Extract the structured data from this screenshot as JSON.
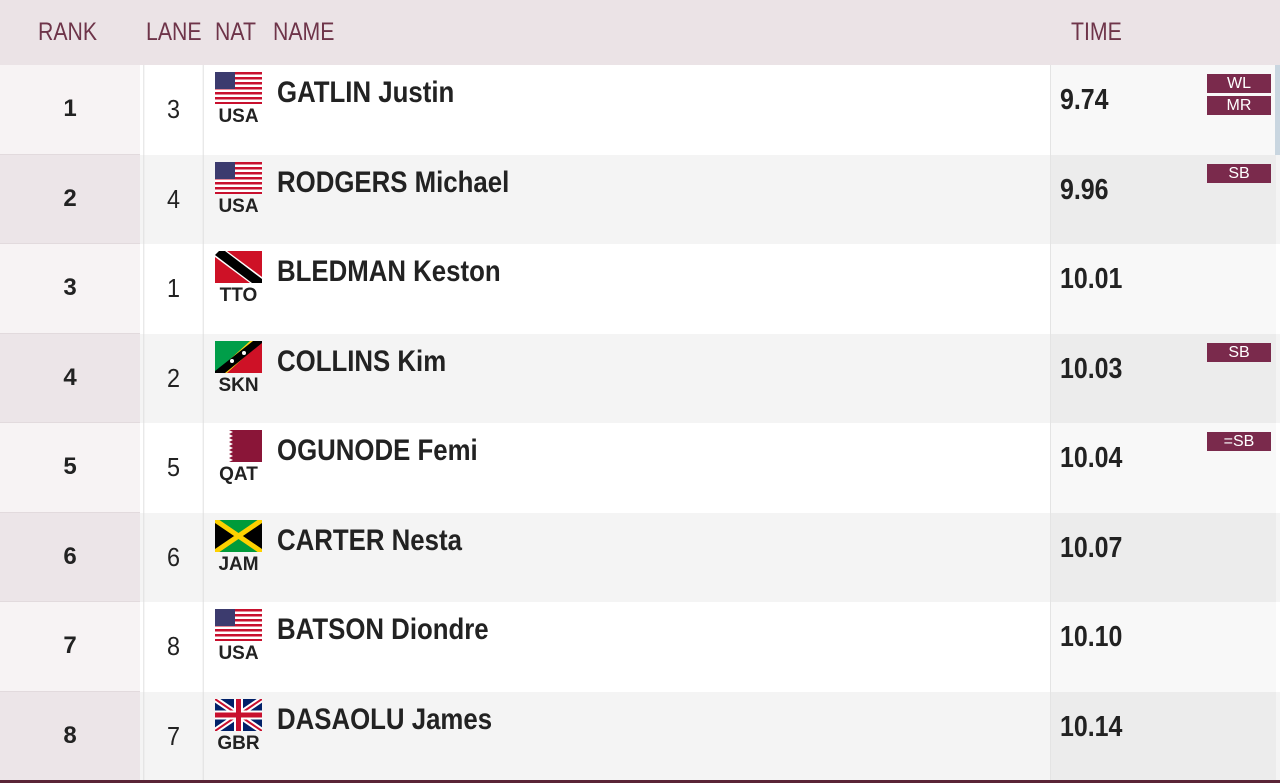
{
  "header": {
    "rank": "RANK",
    "lane": "LANE",
    "nat": "NAT",
    "name": "NAME",
    "time": "TIME"
  },
  "rows": [
    {
      "rank": "1",
      "lane": "3",
      "nat": "USA",
      "name": "GATLIN Justin",
      "time": "9.74",
      "records": [
        "WL",
        "MR"
      ]
    },
    {
      "rank": "2",
      "lane": "4",
      "nat": "USA",
      "name": "RODGERS Michael",
      "time": "9.96",
      "records": [
        "SB"
      ]
    },
    {
      "rank": "3",
      "lane": "1",
      "nat": "TTO",
      "name": "BLEDMAN Keston",
      "time": "10.01"
    },
    {
      "rank": "4",
      "lane": "2",
      "nat": "SKN",
      "name": "COLLINS Kim",
      "time": "10.03",
      "records": [
        "SB"
      ]
    },
    {
      "rank": "5",
      "lane": "5",
      "nat": "QAT",
      "name": "OGUNODE Femi",
      "time": "10.04",
      "records": [
        "=SB"
      ]
    },
    {
      "rank": "6",
      "lane": "6",
      "nat": "JAM",
      "name": "CARTER Nesta",
      "time": "10.07"
    },
    {
      "rank": "7",
      "lane": "8",
      "nat": "USA",
      "name": "BATSON Diondre",
      "time": "10.10"
    },
    {
      "rank": "8",
      "lane": "7",
      "nat": "GBR",
      "name": "DASAOLU James",
      "time": "10.14"
    }
  ]
}
